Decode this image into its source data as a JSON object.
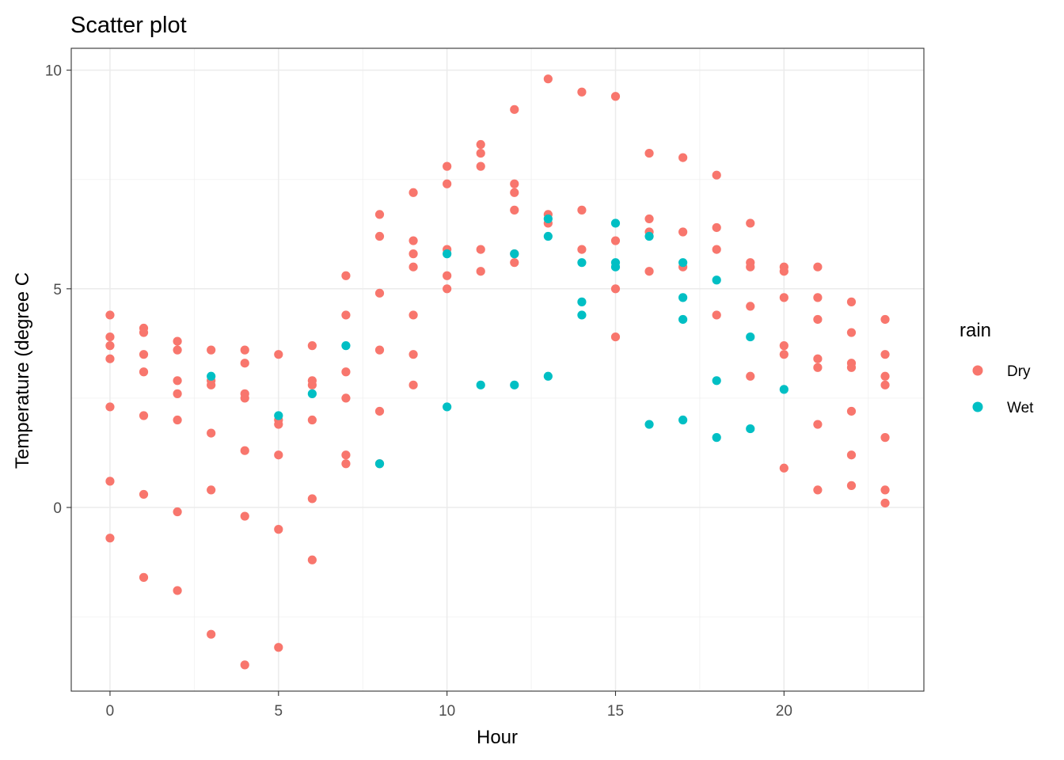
{
  "chart_data": {
    "type": "scatter",
    "title": "Scatter plot",
    "xlabel": "Hour",
    "ylabel": "Temperature (degree C",
    "xlim": [
      -1.15,
      24.15
    ],
    "ylim": [
      -4.2,
      10.5
    ],
    "x_ticks": [
      0,
      5,
      10,
      15,
      20
    ],
    "y_ticks": [
      0,
      5,
      10
    ],
    "grid": true,
    "legend": {
      "title": "rain",
      "position": "right"
    },
    "colors": {
      "Dry": "#F8766D",
      "Wet": "#00BFC4"
    },
    "series": [
      {
        "name": "Dry",
        "points": [
          [
            0,
            4.4
          ],
          [
            0,
            3.9
          ],
          [
            0,
            3.7
          ],
          [
            0,
            3.4
          ],
          [
            0,
            2.3
          ],
          [
            0,
            0.6
          ],
          [
            0,
            -0.7
          ],
          [
            1,
            4.1
          ],
          [
            1,
            4.0
          ],
          [
            1,
            3.5
          ],
          [
            1,
            3.1
          ],
          [
            1,
            2.1
          ],
          [
            1,
            0.3
          ],
          [
            1,
            -1.6
          ],
          [
            2,
            3.8
          ],
          [
            2,
            3.6
          ],
          [
            2,
            2.9
          ],
          [
            2,
            2.6
          ],
          [
            2,
            2.0
          ],
          [
            2,
            -0.1
          ],
          [
            2,
            -1.9
          ],
          [
            3,
            3.6
          ],
          [
            3,
            2.9
          ],
          [
            3,
            2.8
          ],
          [
            3,
            1.7
          ],
          [
            3,
            0.4
          ],
          [
            3,
            -2.9
          ],
          [
            4,
            3.6
          ],
          [
            4,
            3.3
          ],
          [
            4,
            2.6
          ],
          [
            4,
            2.5
          ],
          [
            4,
            1.3
          ],
          [
            4,
            -0.2
          ],
          [
            4,
            -3.6
          ],
          [
            5,
            3.5
          ],
          [
            5,
            2.0
          ],
          [
            5,
            1.9
          ],
          [
            5,
            1.2
          ],
          [
            5,
            -0.5
          ],
          [
            5,
            -3.2
          ],
          [
            6,
            3.7
          ],
          [
            6,
            2.9
          ],
          [
            6,
            2.8
          ],
          [
            6,
            2.0
          ],
          [
            6,
            0.2
          ],
          [
            6,
            -1.2
          ],
          [
            7,
            5.3
          ],
          [
            7,
            4.4
          ],
          [
            7,
            3.1
          ],
          [
            7,
            2.5
          ],
          [
            7,
            1.2
          ],
          [
            7,
            1.0
          ],
          [
            8,
            6.7
          ],
          [
            8,
            6.2
          ],
          [
            8,
            4.9
          ],
          [
            8,
            3.6
          ],
          [
            8,
            2.2
          ],
          [
            8,
            1.0
          ],
          [
            9,
            7.2
          ],
          [
            9,
            6.1
          ],
          [
            9,
            5.8
          ],
          [
            9,
            5.5
          ],
          [
            9,
            4.4
          ],
          [
            9,
            3.5
          ],
          [
            9,
            2.8
          ],
          [
            10,
            7.8
          ],
          [
            10,
            7.4
          ],
          [
            10,
            5.9
          ],
          [
            10,
            5.3
          ],
          [
            10,
            5.0
          ],
          [
            11,
            8.3
          ],
          [
            11,
            8.1
          ],
          [
            11,
            7.8
          ],
          [
            11,
            5.9
          ],
          [
            11,
            5.4
          ],
          [
            12,
            9.1
          ],
          [
            12,
            7.4
          ],
          [
            12,
            7.2
          ],
          [
            12,
            6.8
          ],
          [
            12,
            5.8
          ],
          [
            12,
            5.6
          ],
          [
            13,
            9.8
          ],
          [
            13,
            6.7
          ],
          [
            13,
            6.5
          ],
          [
            14,
            9.5
          ],
          [
            14,
            6.8
          ],
          [
            14,
            5.9
          ],
          [
            15,
            9.4
          ],
          [
            15,
            6.1
          ],
          [
            15,
            5.0
          ],
          [
            15,
            3.9
          ],
          [
            16,
            8.1
          ],
          [
            16,
            6.6
          ],
          [
            16,
            6.3
          ],
          [
            16,
            5.4
          ],
          [
            17,
            8.0
          ],
          [
            17,
            6.3
          ],
          [
            17,
            5.5
          ],
          [
            18,
            7.6
          ],
          [
            18,
            6.4
          ],
          [
            18,
            5.9
          ],
          [
            18,
            4.4
          ],
          [
            19,
            6.5
          ],
          [
            19,
            5.6
          ],
          [
            19,
            5.5
          ],
          [
            19,
            4.6
          ],
          [
            19,
            3.0
          ],
          [
            20,
            5.5
          ],
          [
            20,
            5.4
          ],
          [
            20,
            4.8
          ],
          [
            20,
            3.7
          ],
          [
            20,
            3.5
          ],
          [
            20,
            0.9
          ],
          [
            21,
            5.5
          ],
          [
            21,
            4.8
          ],
          [
            21,
            4.3
          ],
          [
            21,
            3.4
          ],
          [
            21,
            3.2
          ],
          [
            21,
            1.9
          ],
          [
            21,
            0.4
          ],
          [
            22,
            4.7
          ],
          [
            22,
            4.0
          ],
          [
            22,
            3.3
          ],
          [
            22,
            3.2
          ],
          [
            22,
            2.2
          ],
          [
            22,
            1.2
          ],
          [
            22,
            0.5
          ],
          [
            23,
            4.3
          ],
          [
            23,
            3.5
          ],
          [
            23,
            3.0
          ],
          [
            23,
            2.8
          ],
          [
            23,
            1.6
          ],
          [
            23,
            0.4
          ],
          [
            23,
            0.1
          ]
        ]
      },
      {
        "name": "Wet",
        "points": [
          [
            3,
            3.0
          ],
          [
            5,
            2.1
          ],
          [
            6,
            2.6
          ],
          [
            7,
            3.7
          ],
          [
            8,
            1.0
          ],
          [
            10,
            5.8
          ],
          [
            10,
            2.3
          ],
          [
            11,
            2.8
          ],
          [
            12,
            5.8
          ],
          [
            12,
            2.8
          ],
          [
            13,
            6.6
          ],
          [
            13,
            6.2
          ],
          [
            13,
            3.0
          ],
          [
            14,
            5.6
          ],
          [
            14,
            4.7
          ],
          [
            14,
            4.4
          ],
          [
            15,
            6.5
          ],
          [
            15,
            5.6
          ],
          [
            15,
            5.5
          ],
          [
            16,
            6.2
          ],
          [
            16,
            1.9
          ],
          [
            17,
            5.6
          ],
          [
            17,
            4.8
          ],
          [
            17,
            4.3
          ],
          [
            17,
            2.0
          ],
          [
            18,
            5.2
          ],
          [
            18,
            2.9
          ],
          [
            18,
            1.6
          ],
          [
            19,
            3.9
          ],
          [
            19,
            1.8
          ],
          [
            20,
            2.7
          ]
        ]
      }
    ]
  }
}
